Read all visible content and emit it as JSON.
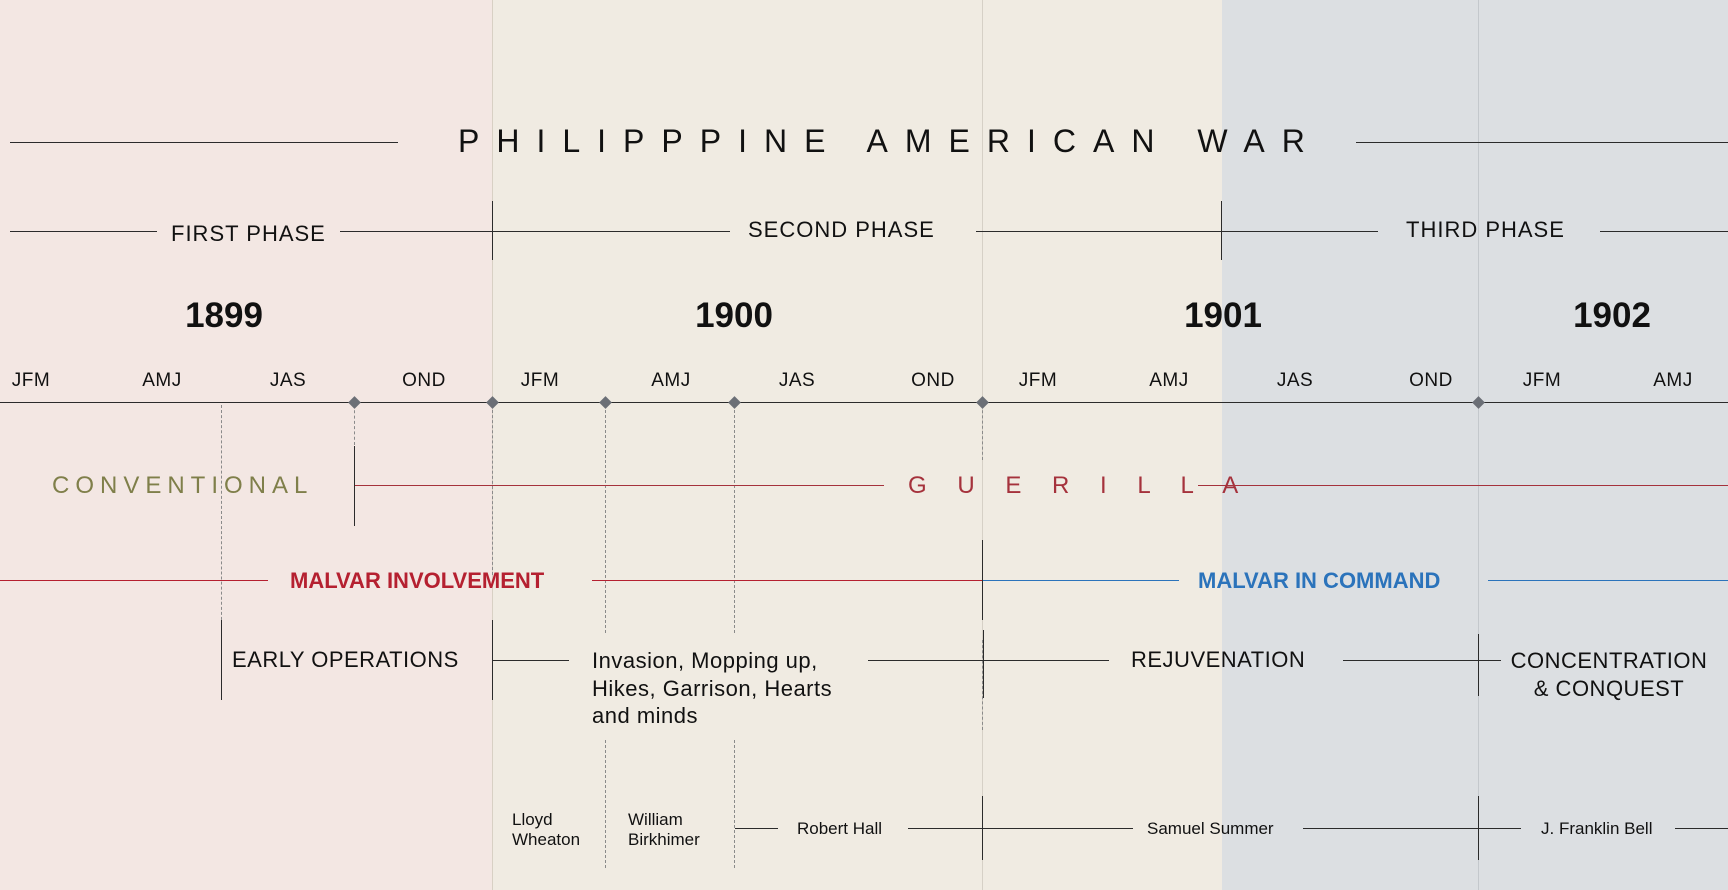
{
  "title": "PHILIPPPINE AMERICAN WAR",
  "phases": [
    {
      "label": "FIRST PHASE"
    },
    {
      "label": "SECOND PHASE"
    },
    {
      "label": "THIRD PHASE"
    }
  ],
  "years": [
    {
      "label": "1899"
    },
    {
      "label": "1900"
    },
    {
      "label": "1901"
    },
    {
      "label": "1902"
    }
  ],
  "quarters": [
    "JFM",
    "AMJ",
    "JAS",
    "OND",
    "JFM",
    "AMJ",
    "JAS",
    "OND",
    "JFM",
    "AMJ",
    "JAS",
    "OND",
    "JFM",
    "AMJ"
  ],
  "warfare": {
    "conventional": "CONVENTIONAL",
    "guerilla": "G U E R I L L A"
  },
  "malvar": {
    "involvement": "MALVAR INVOLVEMENT",
    "command": "MALVAR IN COMMAND"
  },
  "stages": [
    {
      "label": "EARLY OPERATIONS"
    },
    {
      "label": "Invasion, Mopping up, Hikes, Garrison, Hearts and minds"
    },
    {
      "label": "REJUVENATION"
    },
    {
      "label": "CONCENTRATION & CONQUEST"
    }
  ],
  "commanders": [
    {
      "name": "Lloyd Wheaton"
    },
    {
      "name": "William Birkhimer"
    },
    {
      "name": "Robert Hall"
    },
    {
      "name": "Samuel Summer"
    },
    {
      "name": "J. Franklin Bell"
    }
  ],
  "colors": {
    "first_phase_bg": "#f3e7e3",
    "second_phase_bg": "#f0ebe2",
    "third_phase_bg": "#dcdfe2",
    "conventional": "#7f7f4a",
    "guerilla": "#a5323c",
    "malvar_involvement": "#b52030",
    "malvar_command": "#2b73bb",
    "line": "#2b2b2b",
    "marker": "#6b6f76"
  }
}
